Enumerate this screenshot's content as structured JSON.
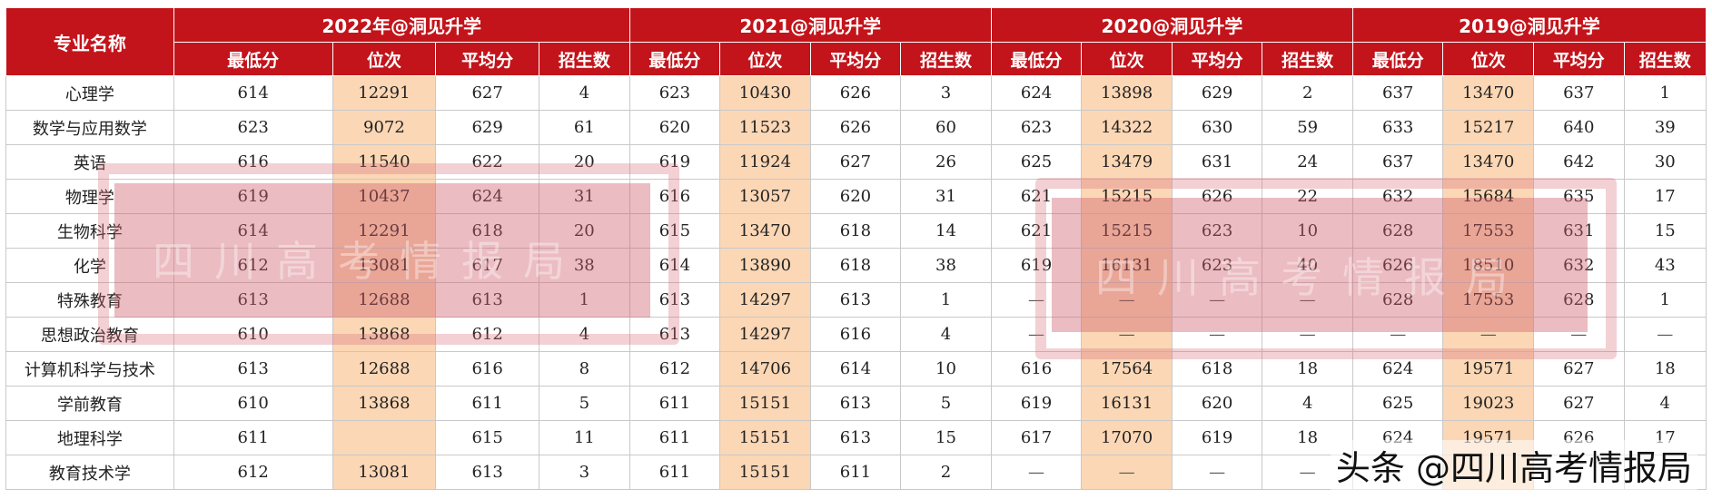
{
  "table": {
    "major_header": "专业名称",
    "years": [
      {
        "label": "2022年@洞见升学"
      },
      {
        "label": "2021@洞见升学"
      },
      {
        "label": "2020@洞见升学"
      },
      {
        "label": "2019@洞见升学"
      }
    ],
    "subheaders": [
      "最低分",
      "位次",
      "平均分",
      "招生数"
    ],
    "rows": [
      {
        "major": "心理学",
        "y": [
          [
            "614",
            "12291",
            "627",
            "4"
          ],
          [
            "623",
            "10430",
            "626",
            "3"
          ],
          [
            "624",
            "13898",
            "629",
            "2"
          ],
          [
            "637",
            "13470",
            "637",
            "1"
          ]
        ]
      },
      {
        "major": "数学与应用数学",
        "y": [
          [
            "623",
            "9072",
            "629",
            "61"
          ],
          [
            "620",
            "11523",
            "626",
            "60"
          ],
          [
            "623",
            "14322",
            "630",
            "59"
          ],
          [
            "633",
            "15217",
            "640",
            "39"
          ]
        ]
      },
      {
        "major": "英语",
        "y": [
          [
            "616",
            "11540",
            "622",
            "20"
          ],
          [
            "619",
            "11924",
            "627",
            "26"
          ],
          [
            "625",
            "13479",
            "631",
            "24"
          ],
          [
            "637",
            "13470",
            "642",
            "30"
          ]
        ]
      },
      {
        "major": "物理学",
        "y": [
          [
            "619",
            "10437",
            "624",
            "31"
          ],
          [
            "616",
            "13057",
            "620",
            "31"
          ],
          [
            "621",
            "15215",
            "626",
            "22"
          ],
          [
            "632",
            "15684",
            "635",
            "17"
          ]
        ]
      },
      {
        "major": "生物科学",
        "y": [
          [
            "614",
            "12291",
            "618",
            "20"
          ],
          [
            "615",
            "13470",
            "618",
            "14"
          ],
          [
            "621",
            "15215",
            "623",
            "10"
          ],
          [
            "628",
            "17553",
            "631",
            "15"
          ]
        ]
      },
      {
        "major": "化学",
        "y": [
          [
            "612",
            "13081",
            "617",
            "38"
          ],
          [
            "614",
            "13890",
            "618",
            "38"
          ],
          [
            "619",
            "16131",
            "623",
            "40"
          ],
          [
            "626",
            "18510",
            "632",
            "43"
          ]
        ]
      },
      {
        "major": "特殊教育",
        "y": [
          [
            "613",
            "12688",
            "613",
            "1"
          ],
          [
            "613",
            "14297",
            "613",
            "1"
          ],
          [
            "—",
            "—",
            "—",
            "—"
          ],
          [
            "628",
            "17553",
            "628",
            "1"
          ]
        ]
      },
      {
        "major": "思想政治教育",
        "y": [
          [
            "610",
            "13868",
            "612",
            "4"
          ],
          [
            "613",
            "14297",
            "616",
            "4"
          ],
          [
            "—",
            "—",
            "—",
            "—"
          ],
          [
            "—",
            "—",
            "—",
            "—"
          ]
        ]
      },
      {
        "major": "计算机科学与技术",
        "y": [
          [
            "613",
            "12688",
            "616",
            "8"
          ],
          [
            "612",
            "14706",
            "614",
            "10"
          ],
          [
            "616",
            "17564",
            "618",
            "18"
          ],
          [
            "624",
            "19571",
            "627",
            "18"
          ]
        ]
      },
      {
        "major": "学前教育",
        "y": [
          [
            "610",
            "13868",
            "611",
            "5"
          ],
          [
            "611",
            "15151",
            "613",
            "5"
          ],
          [
            "619",
            "16131",
            "620",
            "4"
          ],
          [
            "625",
            "19023",
            "627",
            "4"
          ]
        ]
      },
      {
        "major": "地理科学",
        "y": [
          [
            "611",
            "",
            "615",
            "11"
          ],
          [
            "611",
            "15151",
            "613",
            "15"
          ],
          [
            "617",
            "17070",
            "619",
            "18"
          ],
          [
            "624",
            "19571",
            "626",
            "17"
          ]
        ]
      },
      {
        "major": "教育技术学",
        "y": [
          [
            "612",
            "13081",
            "613",
            "3"
          ],
          [
            "611",
            "15151",
            "611",
            "2"
          ],
          [
            "—",
            "—",
            "—",
            "—"
          ],
          [
            "",
            "",
            "",
            ""
          ]
        ]
      }
    ]
  },
  "watermarks": [
    {
      "text": "四川高考情报局"
    },
    {
      "text": "四川高考情报局"
    }
  ],
  "signature": "头条 @四川高考情报局",
  "colors": {
    "header_bg": "#c3141b",
    "rank_bg": "#fbd7b5",
    "stamp": "#d0606c"
  }
}
